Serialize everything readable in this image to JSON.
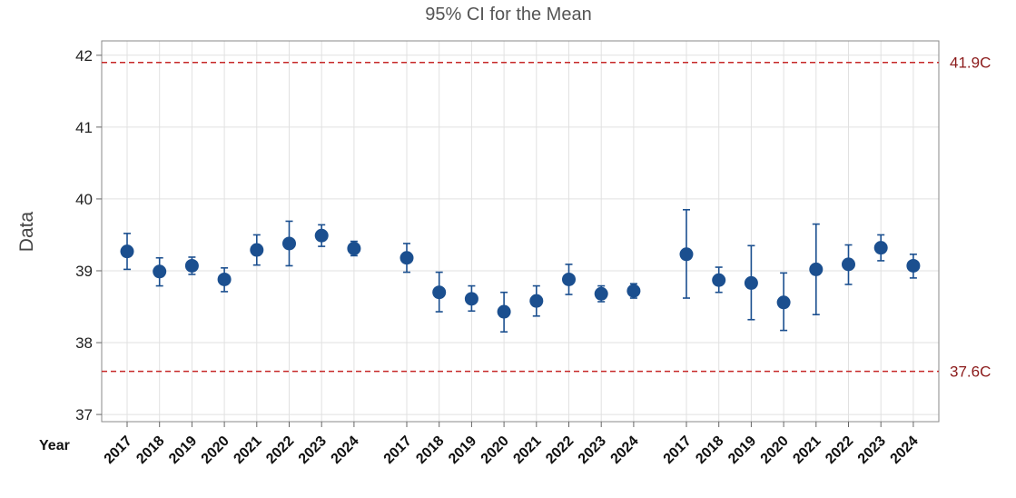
{
  "chart_data": {
    "type": "scatter",
    "title": "95% CI for the Mean",
    "xlabel": "Year",
    "ylabel": "Data",
    "ylim": [
      36.9,
      42.2
    ],
    "yticks": [
      37,
      38,
      39,
      40,
      41,
      42
    ],
    "grid": true,
    "marker_color": "#1b4f8f",
    "reference_color": "#c62828",
    "reference_label_color": "#8b1a1a",
    "reference_lines": [
      {
        "value": 41.9,
        "label": "41.9C"
      },
      {
        "value": 37.6,
        "label": "37.6C"
      }
    ],
    "groups": [
      {
        "years": [
          "2017",
          "2018",
          "2019",
          "2020",
          "2021",
          "2022",
          "2023",
          "2024"
        ],
        "mean": [
          39.27,
          38.99,
          39.07,
          38.88,
          39.29,
          39.38,
          39.49,
          39.31
        ],
        "lower": [
          39.02,
          38.79,
          38.95,
          38.71,
          39.08,
          39.07,
          39.34,
          39.21
        ],
        "upper": [
          39.52,
          39.18,
          39.19,
          39.04,
          39.5,
          39.69,
          39.64,
          39.41
        ]
      },
      {
        "years": [
          "2017",
          "2018",
          "2019",
          "2020",
          "2021",
          "2022",
          "2023",
          "2024"
        ],
        "mean": [
          39.18,
          38.7,
          38.61,
          38.43,
          38.58,
          38.88,
          38.68,
          38.72
        ],
        "lower": [
          38.98,
          38.43,
          38.44,
          38.15,
          38.37,
          38.67,
          38.57,
          38.62
        ],
        "upper": [
          39.38,
          38.98,
          38.79,
          38.7,
          38.79,
          39.09,
          38.79,
          38.82
        ]
      },
      {
        "years": [
          "2017",
          "2018",
          "2019",
          "2020",
          "2021",
          "2022",
          "2023",
          "2024"
        ],
        "mean": [
          39.23,
          38.87,
          38.83,
          38.56,
          39.02,
          39.09,
          39.32,
          39.07
        ],
        "lower": [
          38.62,
          38.7,
          38.32,
          38.17,
          38.39,
          38.81,
          39.14,
          38.9
        ],
        "upper": [
          39.85,
          39.05,
          39.35,
          38.97,
          39.65,
          39.36,
          39.5,
          39.23
        ]
      }
    ]
  }
}
